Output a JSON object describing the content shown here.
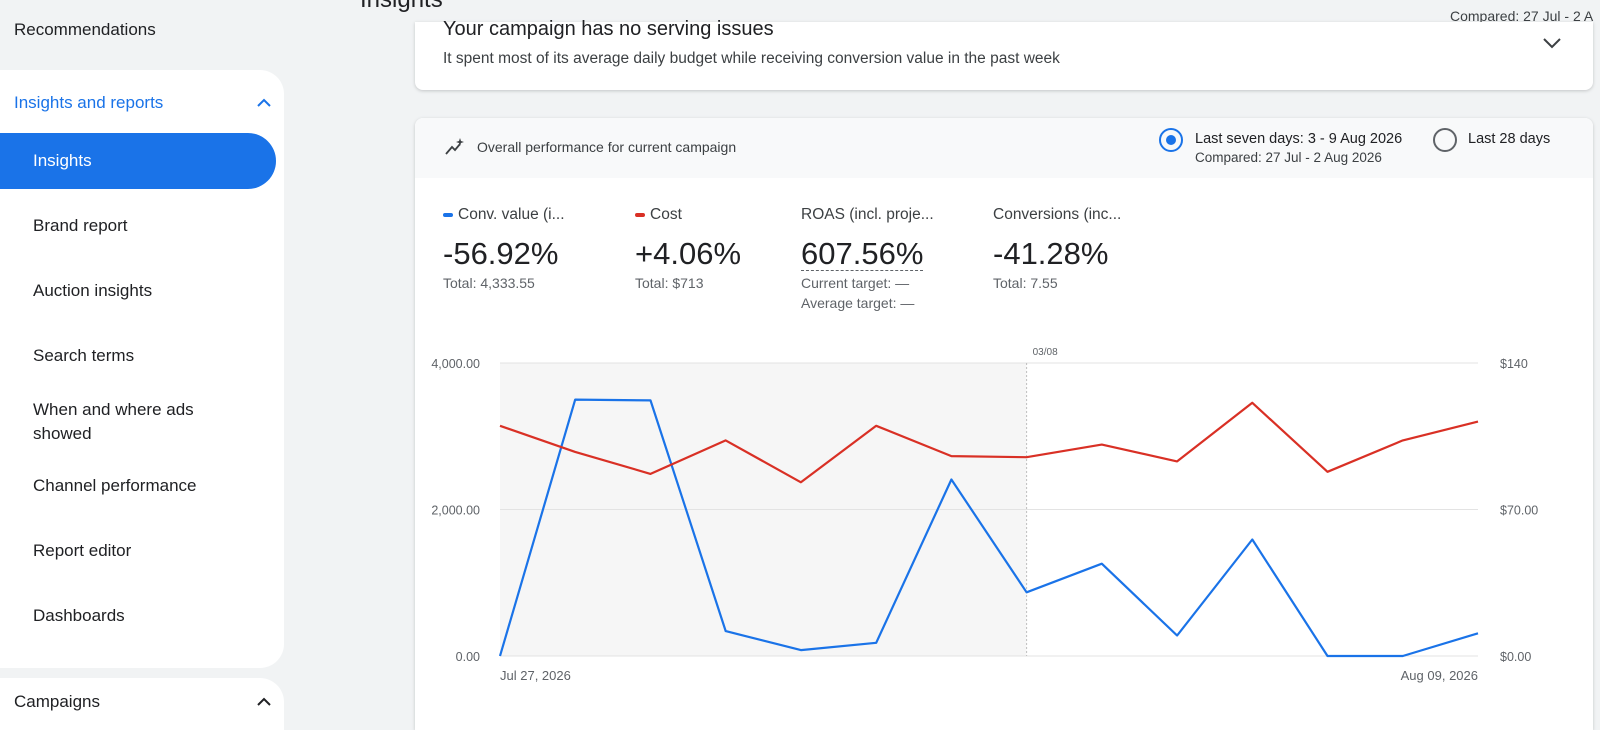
{
  "sidebar": {
    "recommendations": "Recommendations",
    "group_title": "Insights and reports",
    "items": [
      {
        "label": "Insights"
      },
      {
        "label": "Brand report"
      },
      {
        "label": "Auction insights"
      },
      {
        "label": "Search terms"
      },
      {
        "label": "When and where ads showed"
      },
      {
        "label": "Channel performance"
      },
      {
        "label": "Report editor"
      },
      {
        "label": "Dashboards"
      }
    ],
    "campaigns": "Campaigns"
  },
  "header": {
    "page_title": "Insights",
    "compared": "Compared: 27 Jul - 2 A"
  },
  "issue": {
    "title": "Your campaign has no serving issues",
    "subtitle": "It spent most of its average daily budget while receiving conversion value in the past week"
  },
  "performance": {
    "title": "Overall performance for current campaign",
    "range_options": [
      {
        "label": "Last seven days: 3 - 9 Aug 2026",
        "sub": "Compared: 27 Jul - 2 Aug 2026",
        "selected": true
      },
      {
        "label": "Last 28 days",
        "selected": false
      }
    ],
    "metrics": [
      {
        "label": "Conv. value (i...",
        "value": "-56.92%",
        "sub": "Total: 4,333.55",
        "color": "#1a73e8"
      },
      {
        "label": "Cost",
        "value": "+4.06%",
        "sub": "Total: $713",
        "color": "#d93025"
      },
      {
        "label": "ROAS (incl. proje...",
        "value": "607.56%",
        "sub1": "Current target: —",
        "sub2": "Average target: —"
      },
      {
        "label": "Conversions (inc...",
        "value": "-41.28%",
        "sub": "Total: 7.55"
      }
    ]
  },
  "chart_data": {
    "type": "line",
    "x": [
      "Jul 27",
      "Jul 28",
      "Jul 29",
      "Jul 30",
      "Jul 31",
      "Aug 1",
      "Aug 2",
      "Aug 3",
      "Aug 4",
      "Aug 5",
      "Aug 6",
      "Aug 7",
      "Aug 8",
      "Aug 9"
    ],
    "x_tick_labels": [
      "Jul 27, 2026",
      "Aug 09, 2026"
    ],
    "marker_label": "03/08",
    "y_left_ticks": [
      "4,000.00",
      "2,000.00",
      "0.00"
    ],
    "y_right_ticks": [
      "$140",
      "$70.00",
      "$0.00"
    ],
    "ylim_left": [
      0,
      4000
    ],
    "ylim_right": [
      0,
      140
    ],
    "series": [
      {
        "name": "Conv. value",
        "axis": "left",
        "color": "#1a73e8",
        "values": [
          0,
          3500,
          3490,
          340,
          80,
          180,
          2410,
          870,
          1260,
          280,
          1590,
          0,
          0,
          310
        ]
      },
      {
        "name": "Cost",
        "axis": "right",
        "color": "#d93025",
        "values": [
          110,
          97.5,
          87,
          103,
          83,
          110,
          95.5,
          95,
          101,
          93,
          121,
          88,
          103,
          112
        ]
      }
    ]
  }
}
